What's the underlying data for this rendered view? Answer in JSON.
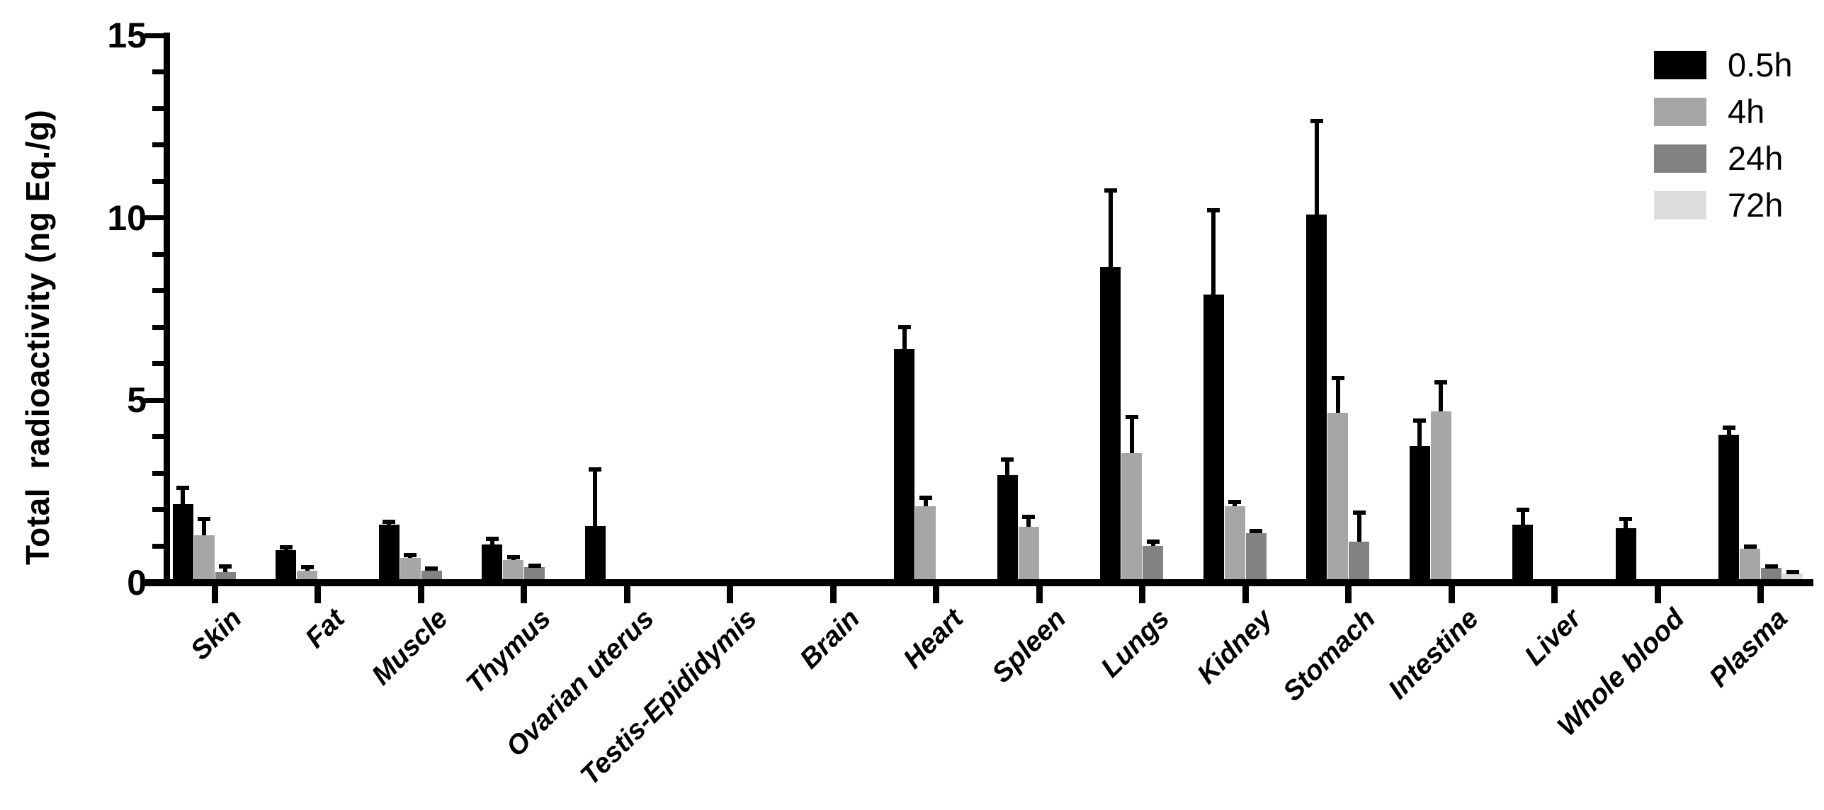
{
  "chart_data": {
    "type": "bar",
    "title": "",
    "ylabel": "Total  radioactivity (ng Eq./g)",
    "xlabel": "",
    "ylim": [
      0,
      15
    ],
    "yticks": [
      0,
      5,
      10,
      15
    ],
    "minor_tick_interval": 1,
    "grid": false,
    "legend_position": "top-right",
    "background_color": "#ffffff",
    "axis_color": "#000000",
    "error_bars": "upper, capped",
    "categories": [
      "Skin",
      "Fat",
      "Muscle",
      "Thymus",
      "Ovarian uterus",
      "Testis-Epididymis",
      "Brain",
      "Heart",
      "Spleen",
      "Lungs",
      "Kidney",
      "Stomach",
      "Intestine",
      "Liver",
      "Whole blood",
      "Plasma"
    ],
    "series": [
      {
        "name": "0.5h",
        "color": "#000000",
        "values": [
          2.15,
          0.9,
          1.6,
          1.05,
          1.55,
          0,
          0,
          6.4,
          2.95,
          8.65,
          7.9,
          10.1,
          3.75,
          1.6,
          1.5,
          4.05
        ],
        "errors": [
          0.45,
          0.07,
          0.06,
          0.15,
          1.55,
          0,
          0,
          0.6,
          0.43,
          2.1,
          2.3,
          2.55,
          0.7,
          0.4,
          0.25,
          0.2
        ]
      },
      {
        "name": "4h",
        "color": "#a6a6a6",
        "values": [
          1.3,
          0.33,
          0.68,
          0.63,
          0,
          0,
          0,
          2.1,
          1.53,
          3.55,
          2.1,
          4.65,
          4.7,
          0,
          0,
          0.93
        ],
        "errors": [
          0.45,
          0.1,
          0.08,
          0.06,
          0,
          0,
          0,
          0.22,
          0.28,
          1.0,
          0.12,
          0.95,
          0.8,
          0,
          0,
          0.06
        ]
      },
      {
        "name": "24h",
        "color": "#828282",
        "values": [
          0.3,
          0,
          0.33,
          0.42,
          0,
          0,
          0,
          0,
          0,
          1.0,
          1.35,
          1.13,
          0,
          0,
          0,
          0.4
        ],
        "errors": [
          0.15,
          0,
          0.05,
          0.04,
          0,
          0,
          0,
          0,
          0,
          0.12,
          0.07,
          0.8,
          0,
          0,
          0,
          0.05
        ]
      },
      {
        "name": "72h",
        "color": "#dcdcdc",
        "values": [
          0,
          0,
          0,
          0,
          0,
          0,
          0,
          0,
          0,
          0,
          0,
          0,
          0,
          0,
          0,
          0.25
        ],
        "errors": [
          0,
          0,
          0,
          0,
          0,
          0,
          0,
          0,
          0,
          0,
          0,
          0,
          0,
          0,
          0,
          0.05
        ]
      }
    ]
  }
}
